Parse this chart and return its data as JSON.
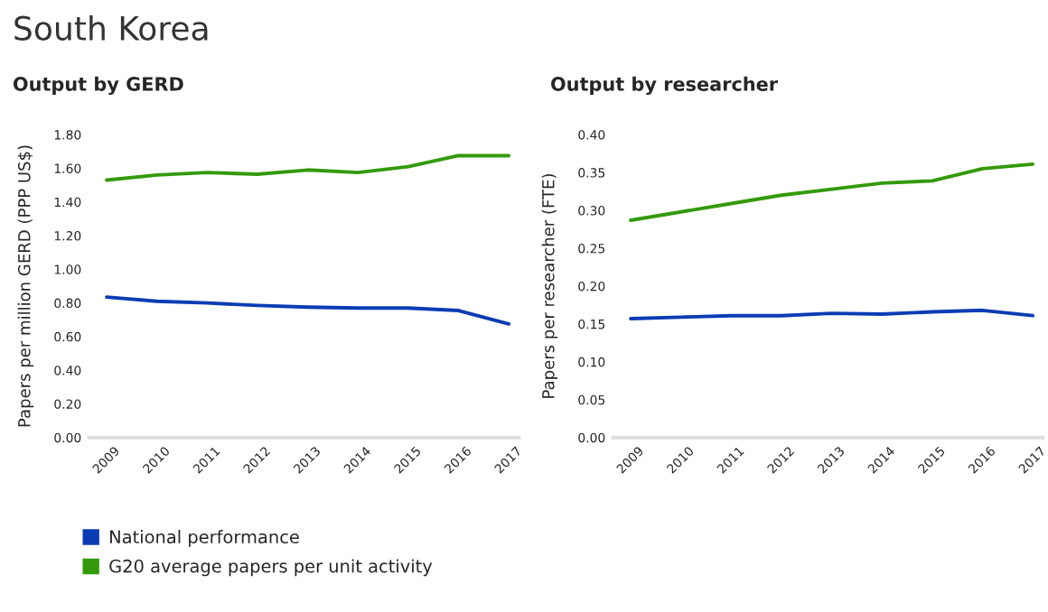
{
  "chart_data": [
    {
      "type": "line",
      "title": "South Korea",
      "subtitle": "Output by GERD",
      "ylabel": "Papers per million GERD (PPP US$)",
      "categories": [
        "2009",
        "2010",
        "2011",
        "2012",
        "2013",
        "2014",
        "2015",
        "2016",
        "2017"
      ],
      "series": [
        {
          "name": "National performance",
          "color": "#0a3cb4",
          "values": [
            0.835,
            0.81,
            0.8,
            0.785,
            0.775,
            0.77,
            0.77,
            0.755,
            0.675
          ]
        },
        {
          "name": "G20 average papers per unit activity",
          "color": "#339a0a",
          "values": [
            1.53,
            1.56,
            1.575,
            1.565,
            1.59,
            1.575,
            1.61,
            1.675,
            1.675
          ]
        }
      ],
      "ylim": [
        0,
        1.8
      ],
      "yticks": [
        {
          "value": 0,
          "label": "0.00"
        },
        {
          "value": 0.2,
          "label": "0.20"
        },
        {
          "value": 0.4,
          "label": "0.40"
        },
        {
          "value": 0.6,
          "label": "0.60"
        },
        {
          "value": 0.8,
          "label": "0.80"
        },
        {
          "value": 1.0,
          "label": "1.00"
        },
        {
          "value": 1.2,
          "label": "1.20"
        },
        {
          "value": 1.4,
          "label": "1.40"
        },
        {
          "value": 1.6,
          "label": "1.60"
        },
        {
          "value": 1.8,
          "label": "1.80"
        }
      ],
      "grid": false,
      "legend": "bottom"
    },
    {
      "type": "line",
      "title": "Output by researcher",
      "ylabel": "Papers per researcher (FTE)",
      "categories": [
        "2009",
        "2010",
        "2011",
        "2012",
        "2013",
        "2014",
        "2015",
        "2016",
        "2017"
      ],
      "series": [
        {
          "color": "#0a3cb4",
          "values": [
            0.157,
            0.159,
            0.161,
            0.161,
            0.164,
            0.163,
            0.166,
            0.168,
            0.161
          ]
        },
        {
          "color": "#339a0a",
          "values": [
            0.287,
            0.298,
            0.309,
            0.32,
            0.328,
            0.336,
            0.339,
            0.355,
            0.361
          ]
        }
      ],
      "ylim": [
        0,
        0.4
      ],
      "yticks": [
        {
          "value": 0,
          "label": "0.00"
        },
        {
          "value": 0.05,
          "label": "0.05"
        },
        {
          "value": 0.1,
          "label": "0.10"
        },
        {
          "value": 0.15,
          "label": "0.15"
        },
        {
          "value": 0.2,
          "label": "0.20"
        },
        {
          "value": 0.25,
          "label": "0.25"
        },
        {
          "value": 0.3,
          "label": "0.30"
        },
        {
          "value": 0.35,
          "label": "0.35"
        },
        {
          "value": 0.4,
          "label": "0.40"
        }
      ],
      "grid": false
    }
  ]
}
